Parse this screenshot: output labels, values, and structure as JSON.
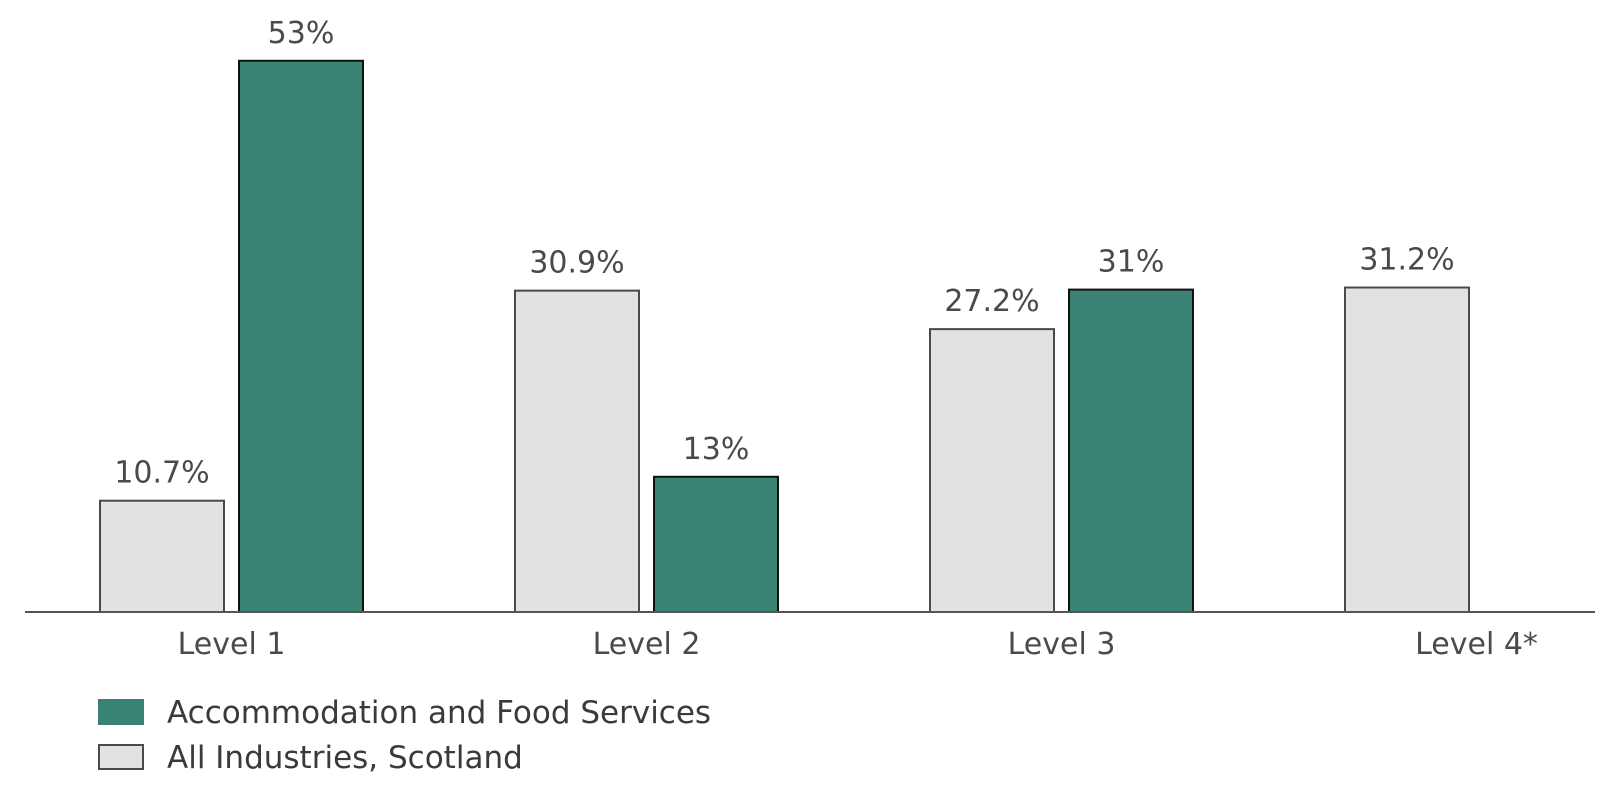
{
  "chart_data": {
    "type": "bar",
    "categories": [
      "Level 1",
      "Level 2",
      "Level 3",
      "Level 4*"
    ],
    "series": [
      {
        "name": "All Industries, Scotland",
        "values": [
          10.7,
          30.9,
          27.2,
          31.2
        ],
        "labels": [
          "10.7%",
          "30.9%",
          "27.2%",
          "31.2%"
        ],
        "color": "#e2e2e2"
      },
      {
        "name": "Accommodation and Food Services",
        "values": [
          53,
          13,
          31,
          null
        ],
        "labels": [
          "53%",
          "13%",
          "31%",
          null
        ],
        "color": "#3a8274"
      }
    ],
    "legend": {
      "placement": "bottom-left",
      "order": [
        "Accommodation and Food Services",
        "All Industries, Scotland"
      ]
    },
    "ylim": [
      0,
      55
    ],
    "grid": false,
    "title": "",
    "xlabel": "",
    "ylabel": ""
  }
}
